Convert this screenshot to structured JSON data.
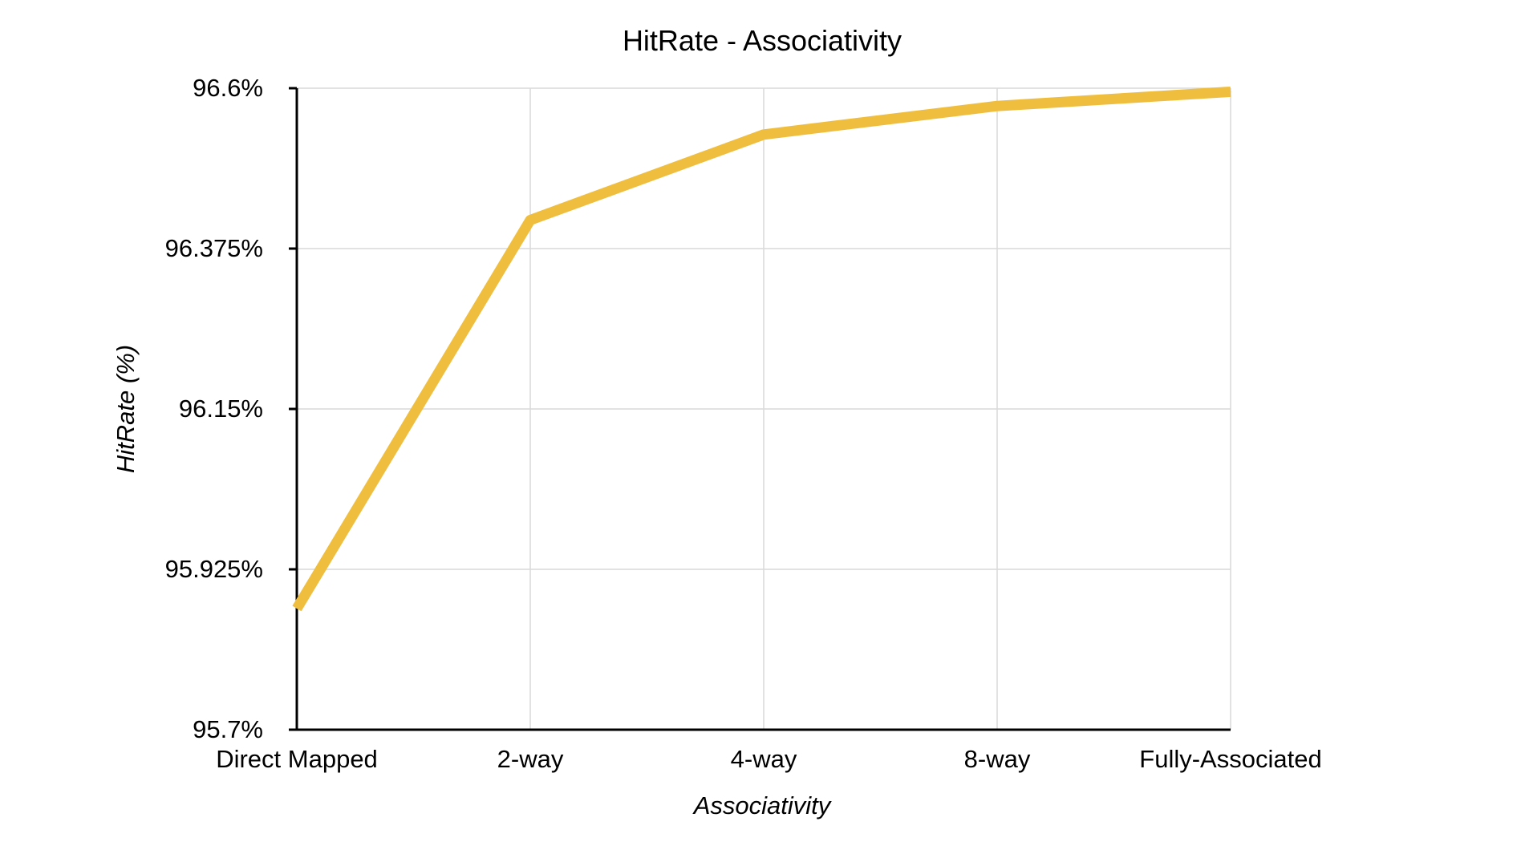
{
  "chart_data": {
    "type": "line",
    "title": "HitRate - Associativity",
    "xlabel": "Associativity",
    "ylabel": "HitRate (%)",
    "categories": [
      "Direct Mapped",
      "2-way",
      "4-way",
      "8-way",
      "Fully-Associated"
    ],
    "series": [
      {
        "values": [
          95.87,
          96.415,
          96.535,
          96.575,
          96.595
        ]
      }
    ],
    "ylim": [
      95.7,
      96.6
    ],
    "yticks": [
      "95.7%",
      "95.925%",
      "96.15%",
      "96.375%",
      "96.6%"
    ],
    "ytick_values": [
      95.7,
      95.925,
      96.15,
      96.375,
      96.6
    ],
    "grid": true,
    "legend": "none",
    "line_color": "#f0be3f"
  }
}
